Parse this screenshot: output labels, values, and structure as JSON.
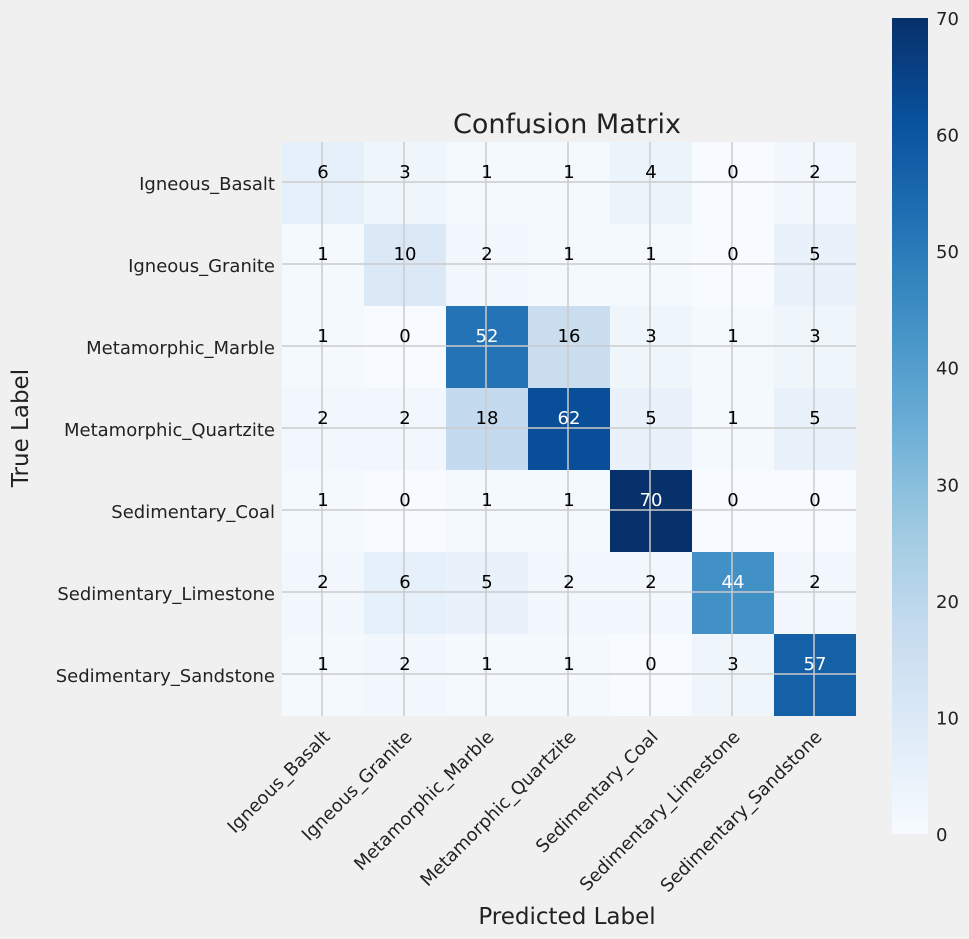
{
  "chart_data": {
    "type": "heatmap",
    "title": "Confusion Matrix",
    "xlabel": "Predicted Label",
    "ylabel": "True Label",
    "x_categories": [
      "Igneous_Basalt",
      "Igneous_Granite",
      "Metamorphic_Marble",
      "Metamorphic_Quartzite",
      "Sedimentary_Coal",
      "Sedimentary_Limestone",
      "Sedimentary_Sandstone"
    ],
    "y_categories": [
      "Igneous_Basalt",
      "Igneous_Granite",
      "Metamorphic_Marble",
      "Metamorphic_Quartzite",
      "Sedimentary_Coal",
      "Sedimentary_Limestone",
      "Sedimentary_Sandstone"
    ],
    "values": [
      [
        6,
        3,
        1,
        1,
        4,
        0,
        2
      ],
      [
        1,
        10,
        2,
        1,
        1,
        0,
        5
      ],
      [
        1,
        0,
        52,
        16,
        3,
        1,
        3
      ],
      [
        2,
        2,
        18,
        62,
        5,
        1,
        5
      ],
      [
        1,
        0,
        1,
        1,
        70,
        0,
        0
      ],
      [
        2,
        6,
        5,
        2,
        2,
        44,
        2
      ],
      [
        1,
        2,
        1,
        1,
        0,
        3,
        57
      ]
    ],
    "colormap": "Blues",
    "color_range": [
      0,
      70
    ],
    "colorbar_ticks": [
      0,
      10,
      20,
      30,
      40,
      50,
      60,
      70
    ],
    "grid": true
  }
}
